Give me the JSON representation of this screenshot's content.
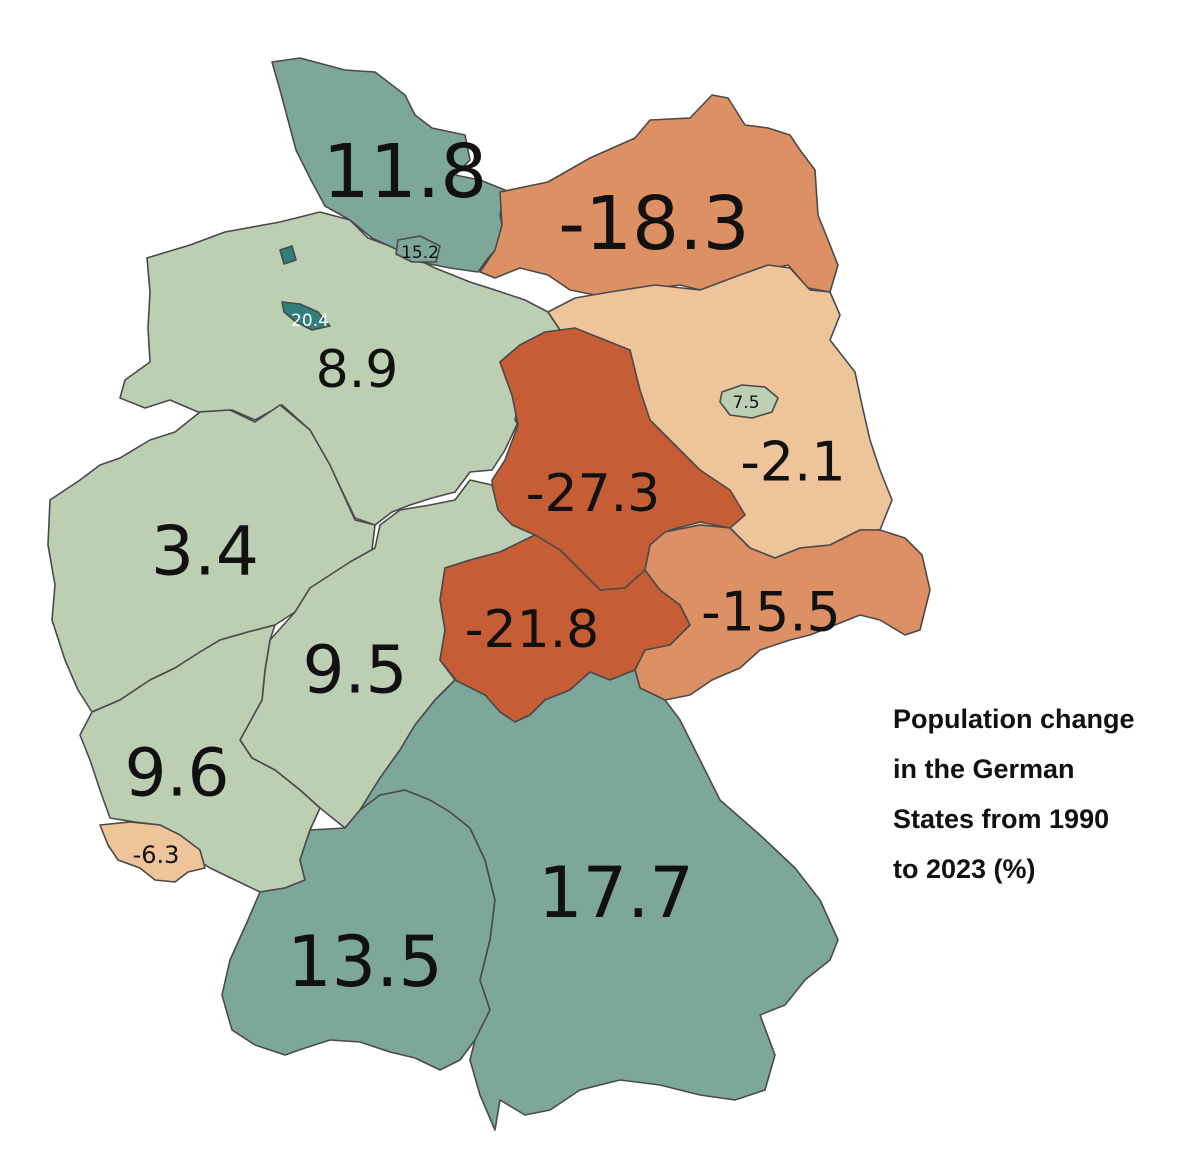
{
  "caption": {
    "lines": [
      "Population change",
      "in the German",
      "States from 1990",
      "to 2023 (%)"
    ]
  },
  "legend_colors": {
    "strong_growth": "#7ea79b",
    "moderate_growth": "#bccfb3",
    "mild_decline": "#eec49a",
    "moderate_decline": "#dc9063",
    "strong_decline": "#c75d34",
    "city_state_dark": "#2f7f7a"
  },
  "states": [
    {
      "id": "schleswig-holstein",
      "value": "11.8",
      "fill": "#7ea79b"
    },
    {
      "id": "hamburg",
      "value": "15.2",
      "fill": "#7ea79b"
    },
    {
      "id": "mecklenburg-vorpommern",
      "value": "-18.3",
      "fill": "#dc9063"
    },
    {
      "id": "bremen",
      "value": "20.4",
      "fill": "#2f7f7a"
    },
    {
      "id": "niedersachsen",
      "value": "8.9",
      "fill": "#bccfb3"
    },
    {
      "id": "berlin",
      "value": "7.5",
      "fill": "#bccfb3"
    },
    {
      "id": "brandenburg",
      "value": "-2.1",
      "fill": "#eec49a"
    },
    {
      "id": "sachsen-anhalt",
      "value": "-27.3",
      "fill": "#c75d34"
    },
    {
      "id": "nordrhein-westfalen",
      "value": "3.4",
      "fill": "#bccfb3"
    },
    {
      "id": "thueringen",
      "value": "-21.8",
      "fill": "#c75d34"
    },
    {
      "id": "sachsen",
      "value": "-15.5",
      "fill": "#dc9063"
    },
    {
      "id": "hessen",
      "value": "9.5",
      "fill": "#bccfb3"
    },
    {
      "id": "rheinland-pfalz",
      "value": "9.6",
      "fill": "#bccfb3"
    },
    {
      "id": "saarland",
      "value": "-6.3",
      "fill": "#eec49a"
    },
    {
      "id": "baden-wuerttemberg",
      "value": "13.5",
      "fill": "#7ea79b"
    },
    {
      "id": "bayern",
      "value": "17.7",
      "fill": "#7ea79b"
    }
  ]
}
